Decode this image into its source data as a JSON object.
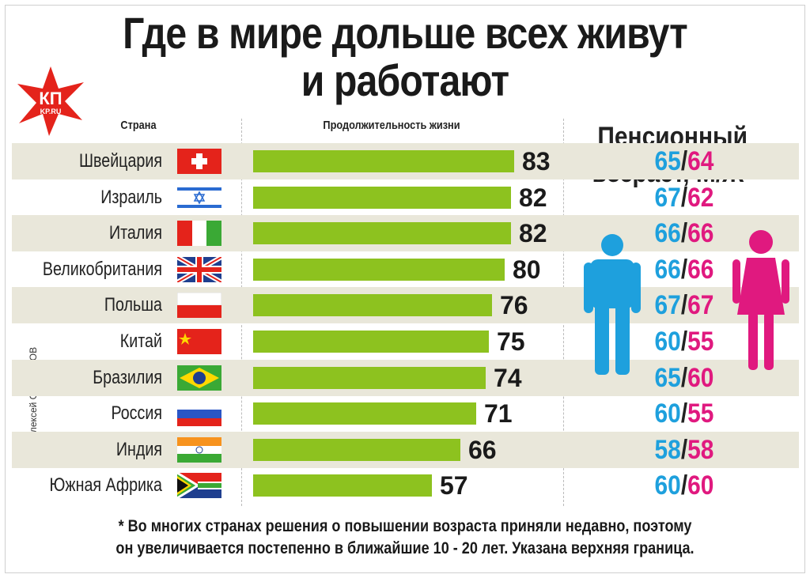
{
  "title_line1": "Где в мире дольше всех живут",
  "title_line2": "и работают",
  "logo_text": "КП",
  "logo_sub": "KP.RU",
  "byline": "Алексей СТЕФАНОВ",
  "headers": {
    "country": "Страна",
    "life": "Продолжительность жизни",
    "retirement": "Пенсионный возраст, М/Ж*"
  },
  "footnote_line1": "* Во многих странах решения о повышении возраста приняли недавно, поэтому",
  "footnote_line2": "он увеличивается постепенно в ближайшие 10 - 20 лет. Указана верхняя граница.",
  "colors": {
    "bar": "#8dc21f",
    "male": "#1ea0dd",
    "female": "#e0197f",
    "band": "#e9e7da"
  },
  "chart_data": {
    "type": "bar",
    "categories": [
      "Швейцария",
      "Израиль",
      "Италия",
      "Великобритания",
      "Польша",
      "Китай",
      "Бразилия",
      "Россия",
      "Индия",
      "Южная Африка"
    ],
    "values": [
      83,
      82,
      82,
      80,
      76,
      75,
      74,
      71,
      66,
      57
    ],
    "retirement_male": [
      65,
      67,
      66,
      66,
      67,
      60,
      65,
      60,
      58,
      60
    ],
    "retirement_female": [
      64,
      62,
      66,
      66,
      67,
      55,
      60,
      55,
      58,
      60
    ],
    "flags": [
      "switzerland-flag",
      "israel-flag",
      "italy-flag",
      "uk-flag",
      "poland-flag",
      "china-flag",
      "brazil-flag",
      "russia-flag",
      "india-flag",
      "south-africa-flag"
    ]
  }
}
